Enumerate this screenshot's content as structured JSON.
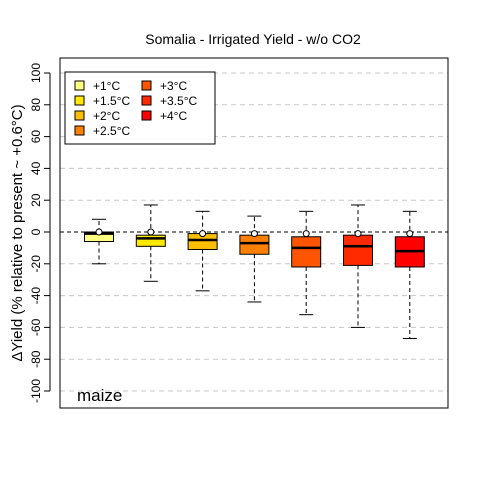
{
  "chart_data": {
    "type": "box",
    "title": "Somalia - Irrigated Yield - w/o CO2",
    "ylabel": "ΔYield (% relative to present ~ +0.6°C)",
    "xlabel": "",
    "annotation": "maize",
    "ylim": [
      -105,
      108
    ],
    "yticks": [
      -100,
      -80,
      -60,
      -40,
      -20,
      0,
      20,
      40,
      60,
      80,
      100
    ],
    "ytick_labels": [
      "-100",
      "-80",
      "-60",
      "-40",
      "-20",
      "0",
      "20",
      "40",
      "60",
      "80",
      "100"
    ],
    "grid": true,
    "legend_position": "top-left",
    "series": [
      {
        "name": "+1°C",
        "color": "#ffff80",
        "min": -20,
        "q1": -6,
        "median": -1,
        "q3": 0,
        "max": 8,
        "mean": 0
      },
      {
        "name": "+1.5°C",
        "color": "#ffea00",
        "min": -31,
        "q1": -9,
        "median": -4,
        "q3": -2,
        "max": 17,
        "mean": 0
      },
      {
        "name": "+2°C",
        "color": "#ffbf00",
        "min": -37,
        "q1": -11,
        "median": -5,
        "q3": -1,
        "max": 13,
        "mean": -1
      },
      {
        "name": "+2.5°C",
        "color": "#ff8000",
        "min": -44,
        "q1": -14,
        "median": -7,
        "q3": -2,
        "max": 10,
        "mean": -1
      },
      {
        "name": "+3°C",
        "color": "#ff5500",
        "min": -52,
        "q1": -22,
        "median": -10,
        "q3": -3,
        "max": 13,
        "mean": -1
      },
      {
        "name": "+3.5°C",
        "color": "#ff2a00",
        "min": -60,
        "q1": -21,
        "median": -9,
        "q3": -2,
        "max": 17,
        "mean": -1
      },
      {
        "name": "+4°C",
        "color": "#ff0000",
        "min": -67,
        "q1": -22,
        "median": -12,
        "q3": -3,
        "max": 13,
        "mean": -1
      }
    ]
  }
}
